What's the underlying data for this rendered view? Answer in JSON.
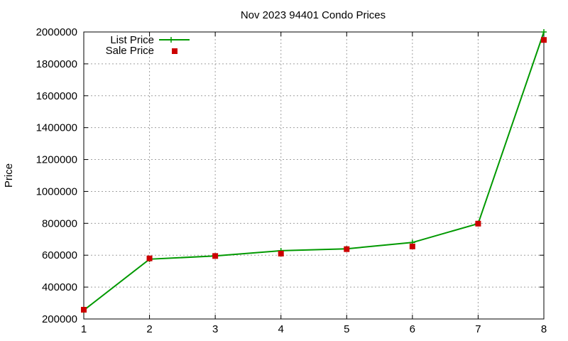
{
  "chart_data": {
    "type": "line",
    "title": "Nov 2023 94401 Condo Prices",
    "xlabel": "",
    "ylabel": "Price",
    "x": [
      1,
      2,
      3,
      4,
      5,
      6,
      7,
      8
    ],
    "xlim": [
      1,
      8
    ],
    "ylim": [
      200000,
      2000000
    ],
    "xticks": [
      "1",
      "2",
      "3",
      "4",
      "5",
      "6",
      "7",
      "8"
    ],
    "yticks": [
      "200000",
      "400000",
      "600000",
      "800000",
      "1000000",
      "1200000",
      "1400000",
      "1600000",
      "1800000",
      "2000000"
    ],
    "grid": true,
    "legend_position": "top-left",
    "series": [
      {
        "name": "List Price",
        "style": "line with plus markers",
        "color": "#009900",
        "values": [
          255000,
          575000,
          595000,
          628000,
          640000,
          680000,
          798000,
          2000000
        ]
      },
      {
        "name": "Sale Price",
        "style": "square markers",
        "color": "#cc0000",
        "values": [
          258000,
          580000,
          595000,
          610000,
          638000,
          655000,
          798000,
          1950000
        ]
      }
    ]
  }
}
